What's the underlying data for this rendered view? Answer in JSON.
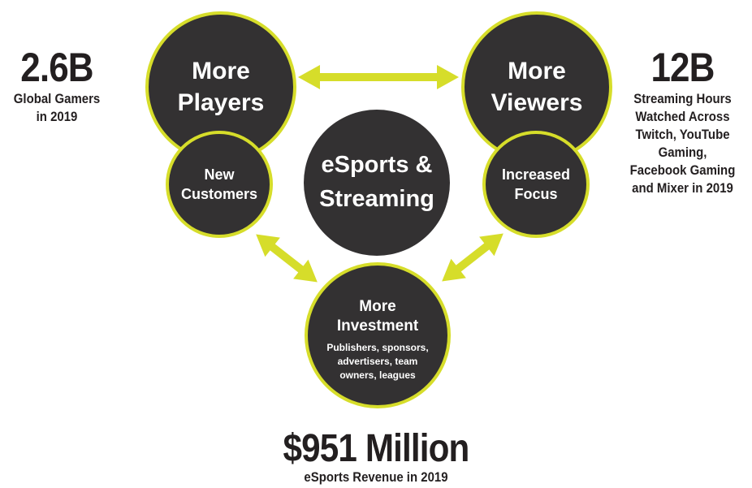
{
  "colors": {
    "circle_fill": "#333132",
    "accent_ring": "#d6dd2a",
    "arrow": "#d6dd2a",
    "text_dark": "#231f20",
    "text_light": "#ffffff"
  },
  "circles": {
    "players": {
      "line1": "More",
      "line2": "Players"
    },
    "viewers": {
      "line1": "More",
      "line2": "Viewers"
    },
    "new_customers": {
      "line1": "New",
      "line2": "Customers"
    },
    "increased_focus": {
      "line1": "Increased",
      "line2": "Focus"
    },
    "center": {
      "line1": "eSports &",
      "line2": "Streaming"
    },
    "investment": {
      "line1": "More",
      "line2": "Investment",
      "detail1": "Publishers, sponsors,",
      "detail2": "advertisers, team",
      "detail3": "owners, leagues"
    }
  },
  "stats": {
    "gamers": {
      "value": "2.6B",
      "line1": "Global Gamers",
      "line2": "in 2019"
    },
    "hours": {
      "value": "12B",
      "line1": "Streaming Hours",
      "line2": "Watched Across",
      "line3": "Twitch, YouTube",
      "line4": "Gaming,",
      "line5": "Facebook Gaming",
      "line6": "and Mixer in 2019"
    },
    "revenue": {
      "value": "$951 Million",
      "line1": "eSports Revenue in 2019"
    }
  }
}
